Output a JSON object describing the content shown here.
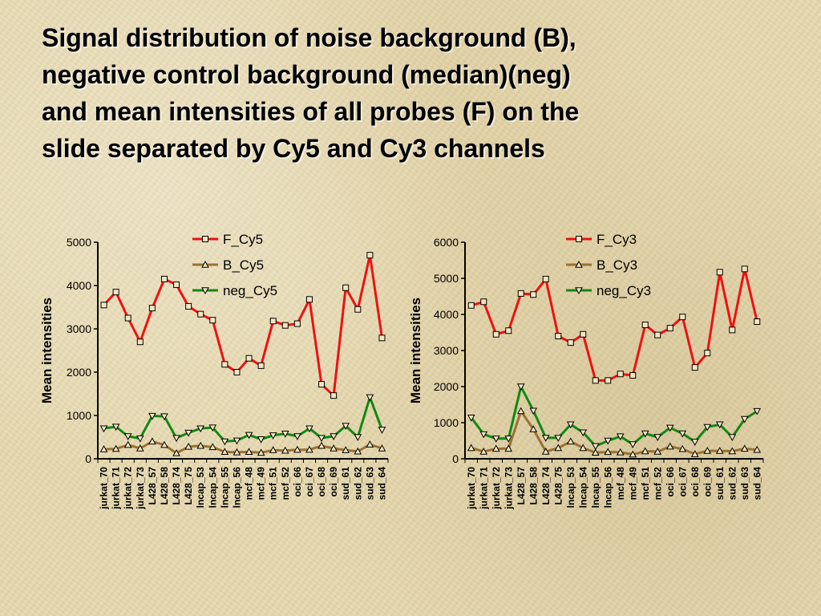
{
  "title_lines": [
    "Signal distribution of noise background (B),",
    "negative control background (median)(neg)",
    "and mean intensities of all probes (F) on the",
    "slide separated by Cy5 and Cy3 channels"
  ],
  "colors": {
    "F": "#ee1111",
    "B": "#9a7232",
    "neg": "#118811"
  },
  "chart_data": [
    {
      "type": "line",
      "ylabel": "Mean intensities",
      "xlabel": "",
      "ylim": [
        0,
        5000
      ],
      "yticks": [
        "0",
        "1000",
        "2000",
        "3000",
        "4000",
        "5000"
      ],
      "legend_position": "top-right",
      "categories": [
        "jurkat_70",
        "jurkat_71",
        "jurkat_72",
        "jurkat_73",
        "L428_57",
        "L428_58",
        "L428_74",
        "L428_75",
        "lncap_53",
        "lncap_54",
        "lncap_55",
        "lncap_56",
        "mcf_48",
        "mcf_49",
        "mcf_51",
        "mcf_52",
        "oci_66",
        "oci_67",
        "oci_68",
        "oci_69",
        "sud_61",
        "sud_62",
        "sud_63",
        "sud_64"
      ],
      "series": [
        {
          "name": "F_Cy5",
          "marker": "square",
          "values": [
            3550,
            3850,
            3250,
            2700,
            3480,
            4150,
            4020,
            3520,
            3340,
            3200,
            2180,
            2000,
            2320,
            2150,
            3180,
            3080,
            3120,
            3680,
            1720,
            1460,
            3950,
            3450,
            4700,
            2790
          ]
        },
        {
          "name": "B_Cy5",
          "marker": "triangle-up",
          "values": [
            220,
            230,
            320,
            240,
            400,
            320,
            130,
            280,
            300,
            270,
            160,
            150,
            160,
            140,
            200,
            190,
            210,
            210,
            300,
            240,
            200,
            170,
            330,
            240
          ]
        },
        {
          "name": "neg_Cy5",
          "marker": "triangle-down",
          "values": [
            700,
            740,
            520,
            470,
            990,
            980,
            480,
            600,
            700,
            720,
            400,
            420,
            550,
            450,
            540,
            580,
            520,
            700,
            480,
            520,
            760,
            500,
            1420,
            670
          ]
        }
      ]
    },
    {
      "type": "line",
      "ylabel": "Mean intensities",
      "xlabel": "",
      "ylim": [
        0,
        6000
      ],
      "yticks": [
        "0",
        "1000",
        "2000",
        "3000",
        "4000",
        "5000",
        "6000"
      ],
      "legend_position": "top-right",
      "categories": [
        "jurkat_70",
        "jurkat_71",
        "jurkat_72",
        "jurkat_73",
        "L428_57",
        "L428_58",
        "L428_74",
        "L428_75",
        "lncap_53",
        "lncap_54",
        "lncap_55",
        "lncap_56",
        "mcf_48",
        "mcf_49",
        "mcf_51",
        "mcf_52",
        "oci_66",
        "oci_67",
        "oci_68",
        "oci_69",
        "sud_61",
        "sud_62",
        "sud_63",
        "sud_64"
      ],
      "series": [
        {
          "name": "F_Cy3",
          "marker": "square",
          "values": [
            4250,
            4350,
            3450,
            3550,
            4580,
            4550,
            4980,
            3400,
            3220,
            3450,
            2170,
            2170,
            2350,
            2310,
            3710,
            3430,
            3620,
            3930,
            2530,
            2930,
            5170,
            3570,
            5260,
            3800
          ]
        },
        {
          "name": "B_Cy3",
          "marker": "triangle-up",
          "values": [
            300,
            200,
            280,
            280,
            1320,
            820,
            200,
            300,
            480,
            300,
            170,
            190,
            180,
            120,
            210,
            200,
            340,
            270,
            130,
            220,
            220,
            210,
            280,
            250
          ]
        },
        {
          "name": "neg_Cy3",
          "marker": "triangle-down",
          "values": [
            1140,
            680,
            560,
            560,
            2000,
            1330,
            580,
            580,
            950,
            730,
            350,
            500,
            620,
            400,
            700,
            600,
            860,
            700,
            470,
            880,
            950,
            600,
            1100,
            1320
          ]
        }
      ]
    }
  ]
}
